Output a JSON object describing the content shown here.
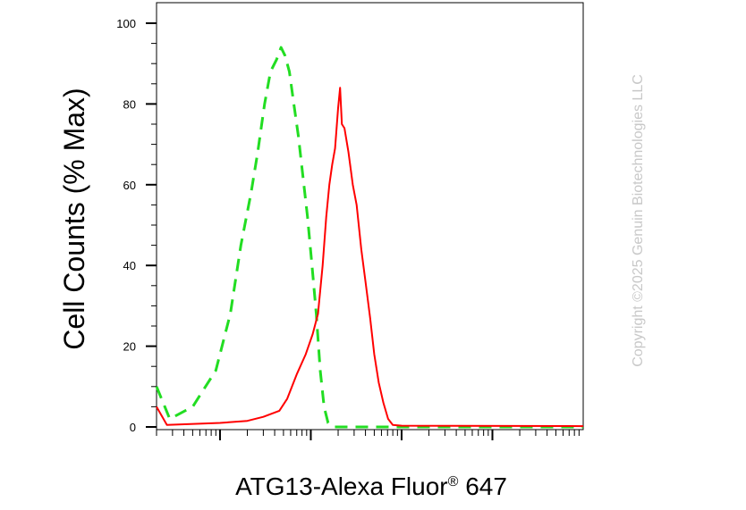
{
  "chart_data": {
    "type": "histogram",
    "xlabel": "ATG13-Alexa Fluor",
    "xlabel_mark": "®",
    "xlabel_suffix": " 647",
    "ylabel": "Cell Counts (% Max)",
    "x_scale": "log",
    "ylim": [
      0,
      100
    ],
    "y_ticks": [
      0,
      20,
      40,
      60,
      80,
      100
    ],
    "grid": false,
    "watermark": "Copyright ©2025 Genuin Biotechnologies LLC",
    "series": [
      {
        "style": "dashed",
        "color": "#22dd22",
        "points": [
          [
            0.02,
            10
          ],
          [
            0.028,
            2
          ],
          [
            0.05,
            5
          ],
          [
            0.09,
            14
          ],
          [
            0.13,
            28
          ],
          [
            0.17,
            45
          ],
          [
            0.22,
            58
          ],
          [
            0.26,
            68
          ],
          [
            0.31,
            80
          ],
          [
            0.36,
            88
          ],
          [
            0.42,
            91
          ],
          [
            0.47,
            94
          ],
          [
            0.52,
            92
          ],
          [
            0.58,
            88
          ],
          [
            0.65,
            80
          ],
          [
            0.73,
            72
          ],
          [
            0.82,
            62
          ],
          [
            0.92,
            52
          ],
          [
            1.03,
            40
          ],
          [
            1.15,
            28
          ],
          [
            1.27,
            14
          ],
          [
            1.4,
            5
          ],
          [
            1.55,
            1
          ],
          [
            1.8,
            0
          ],
          [
            1000,
            0
          ]
        ]
      },
      {
        "style": "solid",
        "color": "#ff0000",
        "points": [
          [
            0.02,
            5
          ],
          [
            0.026,
            0.5
          ],
          [
            0.1,
            1
          ],
          [
            0.2,
            1.5
          ],
          [
            0.3,
            2.5
          ],
          [
            0.45,
            4
          ],
          [
            0.55,
            7
          ],
          [
            0.7,
            13
          ],
          [
            0.88,
            18
          ],
          [
            1.05,
            23
          ],
          [
            1.2,
            28
          ],
          [
            1.35,
            40
          ],
          [
            1.48,
            52
          ],
          [
            1.6,
            60
          ],
          [
            1.72,
            65
          ],
          [
            1.85,
            69
          ],
          [
            2.0,
            79
          ],
          [
            2.1,
            84
          ],
          [
            2.2,
            75
          ],
          [
            2.35,
            74
          ],
          [
            2.6,
            68
          ],
          [
            2.9,
            60
          ],
          [
            3.2,
            55
          ],
          [
            3.6,
            44
          ],
          [
            4.0,
            36
          ],
          [
            4.5,
            27
          ],
          [
            5.0,
            18
          ],
          [
            5.6,
            11
          ],
          [
            6.3,
            6
          ],
          [
            7.1,
            2
          ],
          [
            8.0,
            0.5
          ],
          [
            10,
            0.3
          ],
          [
            1000,
            0.2
          ]
        ]
      }
    ]
  }
}
